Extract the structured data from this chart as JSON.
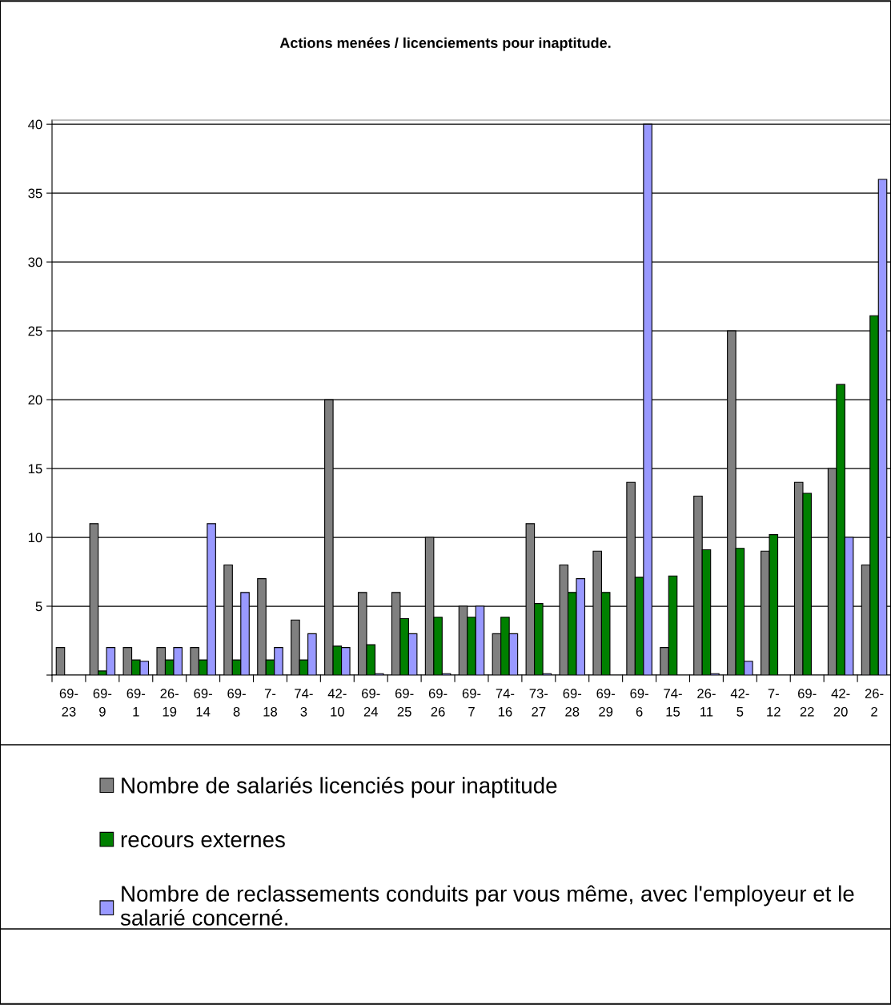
{
  "chart_data": {
    "type": "bar",
    "title": "Actions menées / licenciements pour inaptitude.",
    "categories": [
      "69-23",
      "69-9",
      "69-1",
      "26-19",
      "69-14",
      "69-8",
      "7-18",
      "74-3",
      "42-10",
      "69-24",
      "69-25",
      "69-26",
      "69-7",
      "74-16",
      "73-27",
      "69-28",
      "69-29",
      "69-6",
      "74-15",
      "26-11",
      "42-5",
      "7-12",
      "69-22",
      "42-20",
      "26-2"
    ],
    "series": [
      {
        "name": "Nombre de salariés licenciés pour inaptitude",
        "color": "#808080",
        "values": [
          2,
          11,
          2,
          2,
          2,
          8,
          7,
          4,
          20,
          6,
          6,
          10,
          5,
          3,
          11,
          8,
          9,
          14,
          2,
          13,
          25,
          9,
          14,
          15,
          8
        ]
      },
      {
        "name": "recours externes",
        "color": "#008000",
        "values": [
          null,
          0.3,
          1.1,
          1.1,
          1.1,
          1.1,
          1.1,
          1.1,
          2.1,
          2.2,
          4.1,
          4.2,
          4.2,
          4.2,
          5.2,
          6,
          6,
          7.1,
          7.2,
          9.1,
          9.2,
          10.2,
          13.2,
          21.1,
          26.1
        ]
      },
      {
        "name": "Nombre de reclassements conduits par vous même, avec l'employeur et le salarié concerné.",
        "color": "#9999ff",
        "values": [
          null,
          2,
          1,
          2,
          11,
          6,
          2,
          3,
          2,
          0.1,
          3,
          0.1,
          5,
          3,
          0.1,
          7,
          null,
          40,
          null,
          0.1,
          1,
          null,
          null,
          10,
          36
        ]
      }
    ],
    "ylim": [
      0,
      40.3
    ],
    "yticks": [
      {
        "value": 0,
        "label": null
      },
      5,
      10,
      15,
      20,
      25,
      30,
      35,
      40
    ],
    "grid": "y",
    "legend": "bottom"
  }
}
